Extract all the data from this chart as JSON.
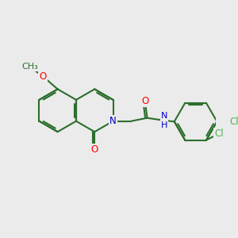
{
  "bg_color": "#ebebeb",
  "bond_color": "#2d6e2d",
  "bond_width": 1.5,
  "atom_colors": {
    "O": "#ff0000",
    "N": "#0000cc",
    "Cl": "#4ab54a",
    "C": "#2d6e2d"
  },
  "font_size": 8.5,
  "figsize": [
    3.0,
    3.0
  ],
  "dpi": 100
}
